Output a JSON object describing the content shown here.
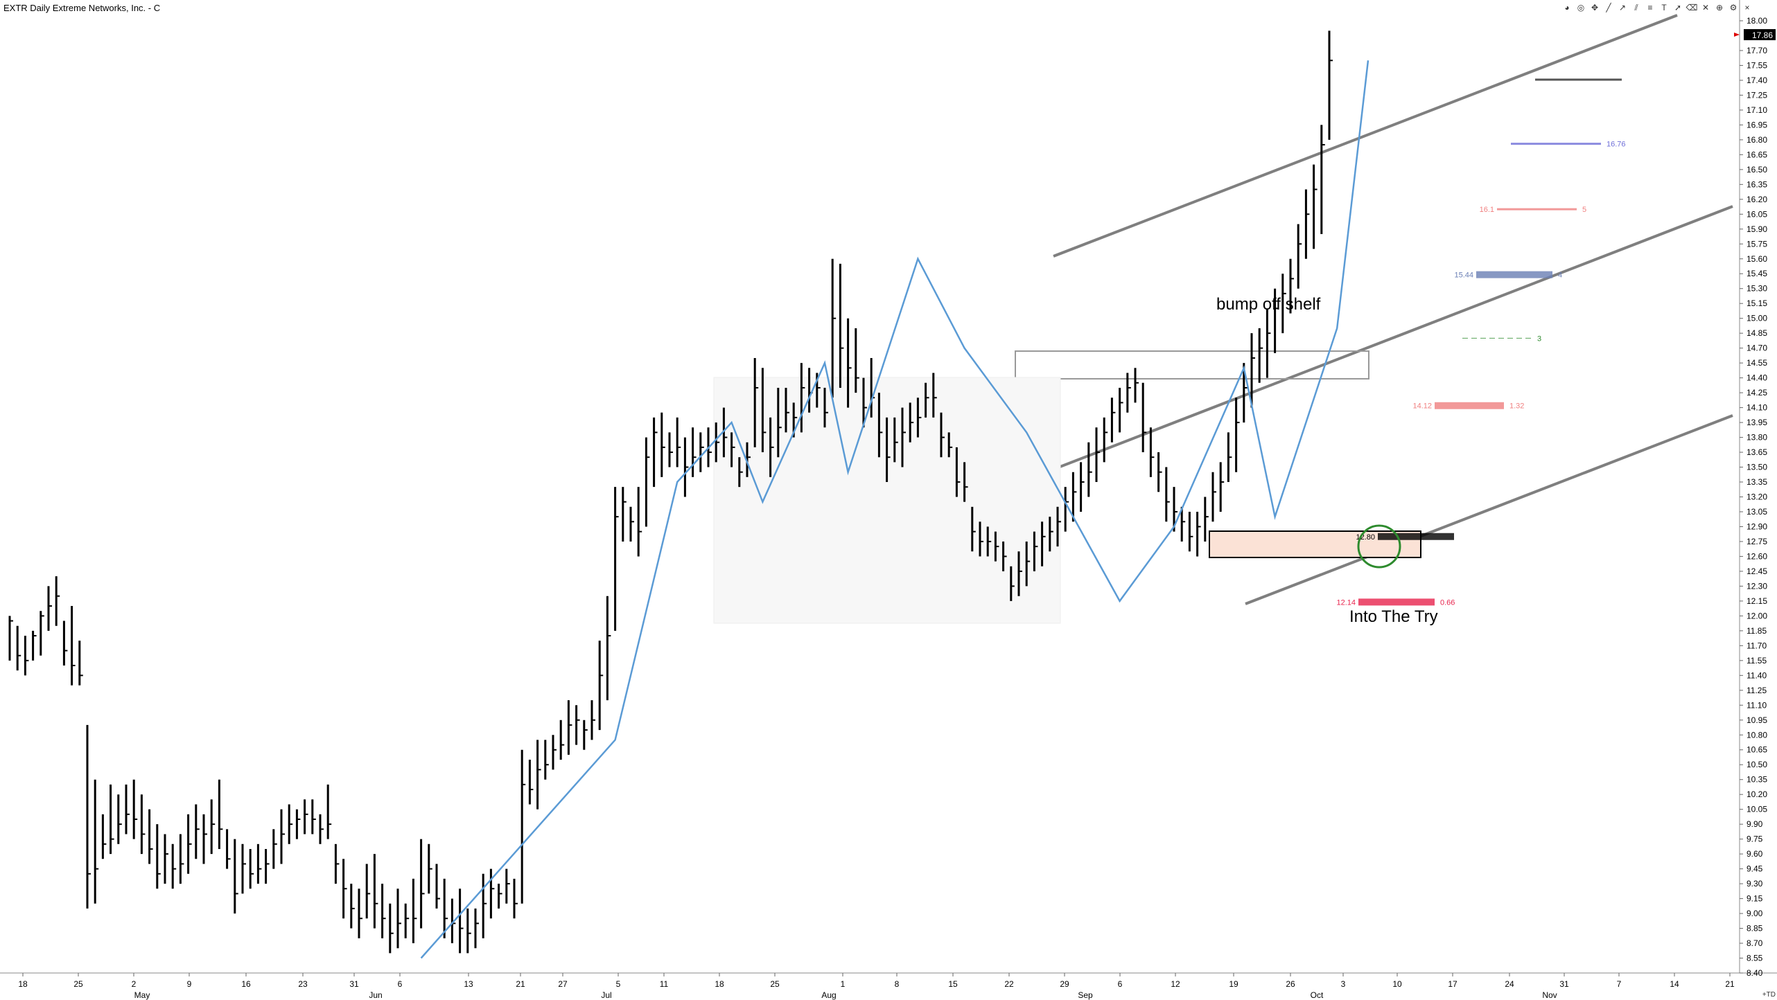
{
  "title": "EXTR Daily Extreme Networks, Inc. - C",
  "toolbar_icons": [
    "palette-icon",
    "target-icon",
    "cursor-icon",
    "line-icon",
    "ray-icon",
    "channel-icon",
    "fib-icon",
    "text-icon",
    "arrow-icon",
    "eraser-icon",
    "cross-icon",
    "zoom-icon",
    "settings-icon",
    "close-icon"
  ],
  "td_label": "+TD",
  "colors": {
    "bars": "#000000",
    "zigzag": "#5b9bd5",
    "channel": "#7f7f7f",
    "green": "#2e8b2e"
  },
  "annotations": {
    "bump": "bump off shelf",
    "try": "Into The Try"
  },
  "levels": [
    {
      "left": "",
      "right": "16.76",
      "color": "#6f6fd8"
    },
    {
      "left": "16.1",
      "right": "5",
      "color": "#f08080"
    },
    {
      "left": "15.44",
      "right": "4",
      "color": "#6a7fb5"
    },
    {
      "left": "",
      "right": "3",
      "color": "#2e8b2e"
    },
    {
      "left": "14.12",
      "right": "1.32",
      "color": "#f08080"
    },
    {
      "left": "12.80",
      "right": "",
      "color": "#000000"
    },
    {
      "left": "12.14",
      "right": "0.66",
      "color": "#e8244d"
    }
  ],
  "chart_data": {
    "type": "bar",
    "last_price": "17.86",
    "y_ticks": [
      "18.00",
      "17.86",
      "17.70",
      "17.55",
      "17.40",
      "17.25",
      "17.10",
      "16.95",
      "16.80",
      "16.65",
      "16.50",
      "16.35",
      "16.20",
      "16.05",
      "15.90",
      "15.75",
      "15.60",
      "15.45",
      "15.30",
      "15.15",
      "15.00",
      "14.85",
      "14.70",
      "14.55",
      "14.40",
      "14.25",
      "14.10",
      "13.95",
      "13.80",
      "13.65",
      "13.50",
      "13.35",
      "13.20",
      "13.05",
      "12.90",
      "12.75",
      "12.60",
      "12.45",
      "12.30",
      "12.15",
      "12.00",
      "11.85",
      "11.70",
      "11.55",
      "11.40",
      "11.25",
      "11.10",
      "10.95",
      "10.80",
      "10.65",
      "10.50",
      "10.35",
      "10.20",
      "10.05",
      "9.90",
      "9.75",
      "9.60",
      "9.45",
      "9.30",
      "9.15",
      "9.00",
      "8.85",
      "8.70",
      "8.55",
      "8.40"
    ],
    "x_ticks": [
      "18",
      "25",
      "2",
      "9",
      "16",
      "23",
      "31",
      "6",
      "13",
      "21",
      "27",
      "5",
      "11",
      "18",
      "25",
      "1",
      "8",
      "15",
      "22",
      "29",
      "6",
      "12",
      "19",
      "26",
      "3",
      "10",
      "17",
      "24",
      "31",
      "7",
      "14",
      "21"
    ],
    "months": [
      "May",
      "Jun",
      "Jul",
      "Aug",
      "Sep",
      "Oct",
      "Nov"
    ],
    "ylim": [
      8.4,
      18.0
    ],
    "bars": [
      [
        12.0,
        11.55,
        11.95
      ],
      [
        11.9,
        11.45,
        11.6
      ],
      [
        11.8,
        11.4,
        11.55
      ],
      [
        11.85,
        11.55,
        11.8
      ],
      [
        12.05,
        11.6,
        12.0
      ],
      [
        12.3,
        11.85,
        12.1
      ],
      [
        12.4,
        11.9,
        12.2
      ],
      [
        11.95,
        11.5,
        11.65
      ],
      [
        12.1,
        11.3,
        11.5
      ],
      [
        11.75,
        11.3,
        11.4
      ],
      [
        10.9,
        9.05,
        9.4
      ],
      [
        10.35,
        9.1,
        9.45
      ],
      [
        10.0,
        9.55,
        9.7
      ],
      [
        10.3,
        9.6,
        9.75
      ],
      [
        10.2,
        9.7,
        9.9
      ],
      [
        10.3,
        9.8,
        10.0
      ],
      [
        10.35,
        9.75,
        9.95
      ],
      [
        10.2,
        9.6,
        9.8
      ],
      [
        10.05,
        9.5,
        9.65
      ],
      [
        9.9,
        9.25,
        9.4
      ],
      [
        9.8,
        9.3,
        9.6
      ],
      [
        9.7,
        9.25,
        9.45
      ],
      [
        9.8,
        9.3,
        9.5
      ],
      [
        10.0,
        9.4,
        9.7
      ],
      [
        10.1,
        9.55,
        9.85
      ],
      [
        10.0,
        9.5,
        9.8
      ],
      [
        10.15,
        9.6,
        9.9
      ],
      [
        10.35,
        9.65,
        9.85
      ],
      [
        9.85,
        9.45,
        9.55
      ],
      [
        9.75,
        9.0,
        9.2
      ],
      [
        9.7,
        9.2,
        9.5
      ],
      [
        9.65,
        9.25,
        9.4
      ],
      [
        9.7,
        9.3,
        9.45
      ],
      [
        9.65,
        9.3,
        9.5
      ],
      [
        9.85,
        9.45,
        9.7
      ],
      [
        10.05,
        9.5,
        9.8
      ],
      [
        10.1,
        9.7,
        9.9
      ],
      [
        10.05,
        9.75,
        9.95
      ],
      [
        10.15,
        9.8,
        10.0
      ],
      [
        10.15,
        9.8,
        9.95
      ],
      [
        10.0,
        9.7,
        9.85
      ],
      [
        10.3,
        9.75,
        9.9
      ],
      [
        9.7,
        9.3,
        9.5
      ],
      [
        9.55,
        8.95,
        9.25
      ],
      [
        9.3,
        8.85,
        9.05
      ],
      [
        9.25,
        8.75,
        8.95
      ],
      [
        9.5,
        8.95,
        9.2
      ],
      [
        9.6,
        8.85,
        9.1
      ],
      [
        9.3,
        8.75,
        8.95
      ],
      [
        9.1,
        8.6,
        8.8
      ],
      [
        9.25,
        8.65,
        8.9
      ],
      [
        9.1,
        8.75,
        8.95
      ],
      [
        9.35,
        8.7,
        8.95
      ],
      [
        9.75,
        8.85,
        9.2
      ],
      [
        9.7,
        9.2,
        9.45
      ],
      [
        9.5,
        9.05,
        9.15
      ],
      [
        9.35,
        8.75,
        8.95
      ],
      [
        9.15,
        8.7,
        8.9
      ],
      [
        9.25,
        8.6,
        8.85
      ],
      [
        9.05,
        8.6,
        8.8
      ],
      [
        9.05,
        8.65,
        8.9
      ],
      [
        9.4,
        8.75,
        9.1
      ],
      [
        9.45,
        8.95,
        9.25
      ],
      [
        9.3,
        9.05,
        9.2
      ],
      [
        9.45,
        9.1,
        9.3
      ],
      [
        9.35,
        8.95,
        9.1
      ],
      [
        10.65,
        9.1,
        10.3
      ],
      [
        10.55,
        10.1,
        10.25
      ],
      [
        10.75,
        10.05,
        10.45
      ],
      [
        10.75,
        10.35,
        10.5
      ],
      [
        10.8,
        10.45,
        10.65
      ],
      [
        10.95,
        10.55,
        10.7
      ],
      [
        11.15,
        10.6,
        10.9
      ],
      [
        11.1,
        10.7,
        10.95
      ],
      [
        10.95,
        10.65,
        10.85
      ],
      [
        11.15,
        10.75,
        10.95
      ],
      [
        11.75,
        10.85,
        11.4
      ],
      [
        12.2,
        11.15,
        11.8
      ],
      [
        13.3,
        11.85,
        13.0
      ],
      [
        13.3,
        12.75,
        13.15
      ],
      [
        13.1,
        12.75,
        12.95
      ],
      [
        13.3,
        12.6,
        12.85
      ],
      [
        13.8,
        12.9,
        13.6
      ],
      [
        14.0,
        13.3,
        13.85
      ],
      [
        14.05,
        13.4,
        13.7
      ],
      [
        13.85,
        13.5,
        13.65
      ],
      [
        14.0,
        13.5,
        13.7
      ],
      [
        13.8,
        13.2,
        13.5
      ],
      [
        13.9,
        13.4,
        13.6
      ],
      [
        13.85,
        13.45,
        13.7
      ],
      [
        13.9,
        13.5,
        13.65
      ],
      [
        13.95,
        13.55,
        13.75
      ],
      [
        14.1,
        13.6,
        13.8
      ],
      [
        13.85,
        13.5,
        13.7
      ],
      [
        13.6,
        13.3,
        13.45
      ],
      [
        13.75,
        13.4,
        13.6
      ],
      [
        14.6,
        13.7,
        14.3
      ],
      [
        14.5,
        13.65,
        13.85
      ],
      [
        14.0,
        13.4,
        13.7
      ],
      [
        14.3,
        13.6,
        13.9
      ],
      [
        14.3,
        13.85,
        14.05
      ],
      [
        14.15,
        13.8,
        14.0
      ],
      [
        14.55,
        13.85,
        14.3
      ],
      [
        14.5,
        14.05,
        14.25
      ],
      [
        14.45,
        14.1,
        14.3
      ],
      [
        14.3,
        13.9,
        14.05
      ],
      [
        15.6,
        14.2,
        15.0
      ],
      [
        15.55,
        14.3,
        14.7
      ],
      [
        15.0,
        14.1,
        14.5
      ],
      [
        14.9,
        14.25,
        14.4
      ],
      [
        14.4,
        13.9,
        14.1
      ],
      [
        14.6,
        14.0,
        14.2
      ],
      [
        14.25,
        13.6,
        13.85
      ],
      [
        14.0,
        13.35,
        13.6
      ],
      [
        14.0,
        13.55,
        13.75
      ],
      [
        14.1,
        13.5,
        13.85
      ],
      [
        14.15,
        13.75,
        13.95
      ],
      [
        14.2,
        13.8,
        14.0
      ],
      [
        14.35,
        14.0,
        14.2
      ],
      [
        14.45,
        14.0,
        14.2
      ],
      [
        14.05,
        13.6,
        13.8
      ],
      [
        13.85,
        13.6,
        13.7
      ],
      [
        13.7,
        13.2,
        13.35
      ],
      [
        13.55,
        13.15,
        13.3
      ],
      [
        13.1,
        12.65,
        12.85
      ],
      [
        12.95,
        12.6,
        12.75
      ],
      [
        12.9,
        12.6,
        12.75
      ],
      [
        12.85,
        12.55,
        12.7
      ],
      [
        12.75,
        12.45,
        12.6
      ],
      [
        12.5,
        12.15,
        12.3
      ],
      [
        12.65,
        12.2,
        12.45
      ],
      [
        12.75,
        12.3,
        12.55
      ],
      [
        12.85,
        12.45,
        12.7
      ],
      [
        12.95,
        12.5,
        12.8
      ],
      [
        13.0,
        12.65,
        12.85
      ],
      [
        13.1,
        12.7,
        12.95
      ],
      [
        13.3,
        12.85,
        13.15
      ],
      [
        13.45,
        12.95,
        13.25
      ],
      [
        13.55,
        13.05,
        13.35
      ],
      [
        13.75,
        13.2,
        13.45
      ],
      [
        13.9,
        13.35,
        13.65
      ],
      [
        14.0,
        13.55,
        13.85
      ],
      [
        14.2,
        13.75,
        14.05
      ],
      [
        14.3,
        13.85,
        14.15
      ],
      [
        14.45,
        14.05,
        14.3
      ],
      [
        14.5,
        14.15,
        14.35
      ],
      [
        14.35,
        13.65,
        13.85
      ],
      [
        13.9,
        13.4,
        13.6
      ],
      [
        13.65,
        13.25,
        13.45
      ],
      [
        13.5,
        12.95,
        13.15
      ],
      [
        13.3,
        12.85,
        13.05
      ],
      [
        13.1,
        12.75,
        12.95
      ],
      [
        13.05,
        12.65,
        12.8
      ],
      [
        13.05,
        12.6,
        12.9
      ],
      [
        13.2,
        12.75,
        13.0
      ],
      [
        13.45,
        12.95,
        13.25
      ],
      [
        13.55,
        13.05,
        13.35
      ],
      [
        13.85,
        13.35,
        13.6
      ],
      [
        14.2,
        13.45,
        13.95
      ],
      [
        14.55,
        13.95,
        14.3
      ],
      [
        14.85,
        14.1,
        14.6
      ],
      [
        14.9,
        14.35,
        14.7
      ],
      [
        15.1,
        14.4,
        14.85
      ],
      [
        15.3,
        14.65,
        15.1
      ],
      [
        15.45,
        14.85,
        15.25
      ],
      [
        15.6,
        15.05,
        15.4
      ],
      [
        15.95,
        15.3,
        15.75
      ],
      [
        16.3,
        15.6,
        16.05
      ],
      [
        16.55,
        15.7,
        16.3
      ],
      [
        16.95,
        15.85,
        16.75
      ],
      [
        17.9,
        16.8,
        17.6
      ]
    ],
    "zigzag": [
      [
        53,
        8.55
      ],
      [
        78,
        10.75
      ],
      [
        86,
        13.35
      ],
      [
        93,
        13.95
      ],
      [
        97,
        13.15
      ],
      [
        105,
        14.55
      ],
      [
        108,
        13.45
      ],
      [
        117,
        15.6
      ],
      [
        123,
        14.7
      ],
      [
        131,
        13.85
      ],
      [
        143,
        12.15
      ],
      [
        150,
        12.9
      ],
      [
        159,
        14.5
      ],
      [
        163,
        13.0
      ],
      [
        171,
        14.9
      ],
      [
        175,
        17.6
      ]
    ]
  }
}
